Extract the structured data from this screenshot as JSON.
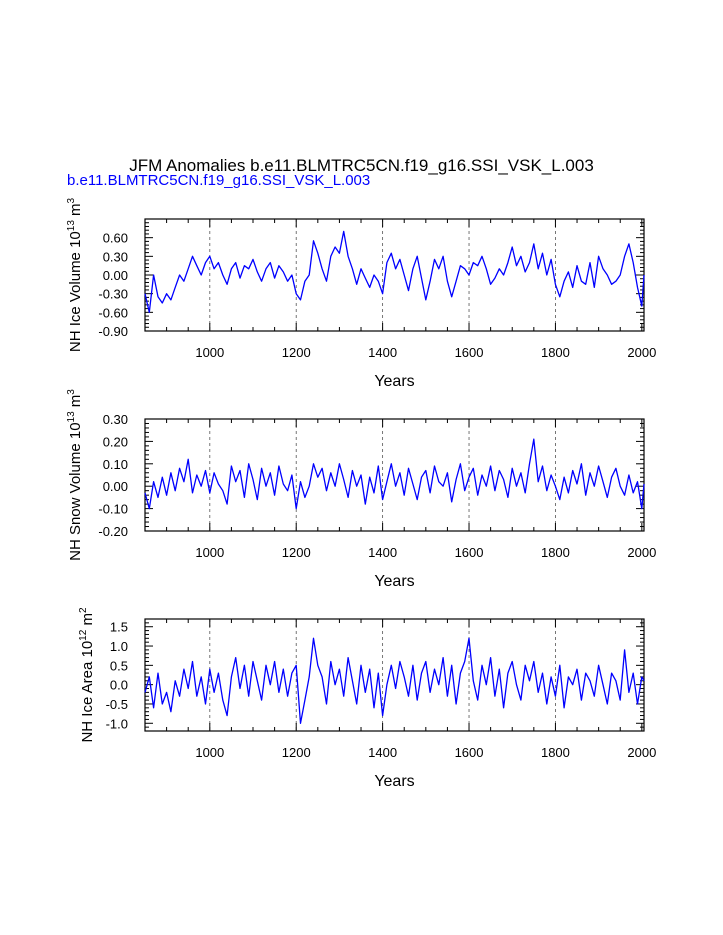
{
  "figure": {
    "title": "JFM Anomalies b.e11.BLMTRC5CN.f19_g16.SSI_VSK_L.003",
    "subtitle": "b.e11.BLMTRC5CN.f19_g16.SSI_VSK_L.003",
    "subtitle_color": "#0000ff",
    "line_color": "#0000ff"
  },
  "chart_data": [
    {
      "type": "line",
      "ylabel": "NH Ice Volume 10^13 m^3",
      "ylabel_parts": {
        "base": "NH Ice Volume 10",
        "exp1": "13",
        "mid": " m",
        "exp2": "3"
      },
      "xlabel": "Years",
      "xlim": [
        850,
        2005
      ],
      "ylim": [
        -0.9,
        0.9
      ],
      "xticks": [
        1000,
        1200,
        1400,
        1600,
        1800,
        2000
      ],
      "yticks": [
        -0.9,
        -0.6,
        -0.3,
        0.0,
        0.3,
        0.6
      ],
      "ytick_labels": [
        "-0.90",
        "-0.60",
        "-0.30",
        "0.00",
        "0.30",
        "0.60"
      ],
      "gridlines_x": [
        1000,
        1200,
        1400,
        1600,
        1800
      ],
      "series": [
        {
          "x": [
            850,
            860,
            870,
            880,
            890,
            900,
            910,
            920,
            930,
            940,
            950,
            960,
            970,
            980,
            990,
            1000,
            1010,
            1020,
            1030,
            1040,
            1050,
            1060,
            1070,
            1080,
            1090,
            1100,
            1110,
            1120,
            1130,
            1140,
            1150,
            1160,
            1170,
            1180,
            1190,
            1200,
            1210,
            1220,
            1230,
            1240,
            1250,
            1260,
            1270,
            1280,
            1290,
            1300,
            1310,
            1320,
            1330,
            1340,
            1350,
            1360,
            1370,
            1380,
            1390,
            1400,
            1410,
            1420,
            1430,
            1440,
            1450,
            1460,
            1470,
            1480,
            1490,
            1500,
            1510,
            1520,
            1530,
            1540,
            1550,
            1560,
            1570,
            1580,
            1590,
            1600,
            1610,
            1620,
            1630,
            1640,
            1650,
            1660,
            1670,
            1680,
            1690,
            1700,
            1710,
            1720,
            1730,
            1740,
            1750,
            1760,
            1770,
            1780,
            1790,
            1800,
            1810,
            1820,
            1830,
            1840,
            1850,
            1860,
            1870,
            1880,
            1890,
            1900,
            1910,
            1920,
            1930,
            1940,
            1950,
            1960,
            1970,
            1980,
            1990,
            2000,
            2005
          ],
          "values": [
            -0.3,
            -0.6,
            0.0,
            -0.35,
            -0.45,
            -0.3,
            -0.4,
            -0.2,
            0.0,
            -0.1,
            0.1,
            0.3,
            0.15,
            0.0,
            0.2,
            0.3,
            0.1,
            0.2,
            0.0,
            -0.15,
            0.1,
            0.2,
            -0.05,
            0.15,
            0.1,
            0.25,
            0.05,
            -0.1,
            0.1,
            0.2,
            -0.05,
            0.15,
            0.05,
            -0.1,
            0.0,
            -0.3,
            -0.4,
            -0.1,
            0.0,
            0.55,
            0.35,
            0.1,
            -0.1,
            0.3,
            0.45,
            0.35,
            0.7,
            0.3,
            0.1,
            -0.15,
            0.1,
            -0.05,
            -0.2,
            0.0,
            -0.1,
            -0.3,
            0.2,
            0.35,
            0.1,
            0.25,
            0.0,
            -0.25,
            0.1,
            0.3,
            -0.05,
            -0.4,
            -0.1,
            0.25,
            0.1,
            0.3,
            -0.1,
            -0.35,
            -0.1,
            0.15,
            0.1,
            0.0,
            0.2,
            0.15,
            0.3,
            0.1,
            -0.15,
            -0.05,
            0.1,
            0.0,
            0.2,
            0.45,
            0.15,
            0.3,
            0.05,
            0.2,
            0.5,
            0.1,
            0.35,
            0.0,
            0.25,
            -0.15,
            -0.35,
            -0.1,
            0.05,
            -0.2,
            0.15,
            -0.1,
            -0.15,
            0.2,
            -0.2,
            0.3,
            0.1,
            0.0,
            -0.15,
            -0.1,
            0.0,
            0.3,
            0.5,
            0.2,
            -0.2,
            -0.5,
            0.0
          ]
        }
      ]
    },
    {
      "type": "line",
      "ylabel": "NH Snow Volume 10^13 m^3",
      "ylabel_parts": {
        "base": "NH Snow Volume 10",
        "exp1": "13",
        "mid": " m",
        "exp2": "3"
      },
      "xlabel": "Years",
      "xlim": [
        850,
        2005
      ],
      "ylim": [
        -0.2,
        0.3
      ],
      "xticks": [
        1000,
        1200,
        1400,
        1600,
        1800,
        2000
      ],
      "yticks": [
        -0.2,
        -0.1,
        0.0,
        0.1,
        0.2,
        0.3
      ],
      "ytick_labels": [
        "-0.20",
        "-0.10",
        "0.00",
        "0.10",
        "0.20",
        "0.30"
      ],
      "gridlines_x": [
        1000,
        1200,
        1400,
        1600,
        1800
      ],
      "series": [
        {
          "x": [
            850,
            860,
            870,
            880,
            890,
            900,
            910,
            920,
            930,
            940,
            950,
            960,
            970,
            980,
            990,
            1000,
            1010,
            1020,
            1030,
            1040,
            1050,
            1060,
            1070,
            1080,
            1090,
            1100,
            1110,
            1120,
            1130,
            1140,
            1150,
            1160,
            1170,
            1180,
            1190,
            1200,
            1210,
            1220,
            1230,
            1240,
            1250,
            1260,
            1270,
            1280,
            1290,
            1300,
            1310,
            1320,
            1330,
            1340,
            1350,
            1360,
            1370,
            1380,
            1390,
            1400,
            1410,
            1420,
            1430,
            1440,
            1450,
            1460,
            1470,
            1480,
            1490,
            1500,
            1510,
            1520,
            1530,
            1540,
            1550,
            1560,
            1570,
            1580,
            1590,
            1600,
            1610,
            1620,
            1630,
            1640,
            1650,
            1660,
            1670,
            1680,
            1690,
            1700,
            1710,
            1720,
            1730,
            1740,
            1750,
            1760,
            1770,
            1780,
            1790,
            1800,
            1810,
            1820,
            1830,
            1840,
            1850,
            1860,
            1870,
            1880,
            1890,
            1900,
            1910,
            1920,
            1930,
            1940,
            1950,
            1960,
            1970,
            1980,
            1990,
            2000,
            2005
          ],
          "values": [
            -0.03,
            -0.1,
            0.02,
            -0.05,
            0.04,
            -0.04,
            0.06,
            -0.02,
            0.08,
            0.02,
            0.12,
            -0.03,
            0.05,
            0.0,
            0.07,
            -0.03,
            0.06,
            0.01,
            -0.02,
            -0.08,
            0.09,
            0.02,
            0.07,
            -0.05,
            0.1,
            0.03,
            -0.06,
            0.08,
            0.0,
            0.06,
            -0.04,
            0.09,
            0.01,
            -0.02,
            0.05,
            -0.1,
            0.02,
            -0.05,
            0.0,
            0.1,
            0.04,
            0.08,
            -0.02,
            0.06,
            0.0,
            0.1,
            0.03,
            -0.05,
            0.07,
            0.0,
            0.05,
            -0.08,
            0.04,
            -0.03,
            0.09,
            -0.06,
            0.02,
            0.1,
            0.0,
            0.06,
            -0.04,
            0.08,
            0.01,
            -0.06,
            0.04,
            0.07,
            -0.03,
            0.09,
            0.02,
            0.0,
            0.06,
            -0.07,
            0.03,
            0.1,
            -0.02,
            0.04,
            0.08,
            -0.04,
            0.05,
            0.0,
            0.09,
            -0.02,
            0.07,
            0.03,
            -0.05,
            0.08,
            0.0,
            0.06,
            -0.03,
            0.1,
            0.21,
            0.02,
            0.09,
            -0.02,
            0.05,
            0.0,
            -0.06,
            0.04,
            -0.03,
            0.07,
            0.01,
            0.1,
            -0.04,
            0.06,
            0.0,
            0.09,
            0.02,
            -0.05,
            0.04,
            0.08,
            0.0,
            -0.04,
            0.05,
            -0.03,
            0.02,
            -0.1,
            0.01
          ]
        }
      ]
    },
    {
      "type": "line",
      "ylabel": "NH Ice Area 10^12 m^2",
      "ylabel_parts": {
        "base": "NH Ice Area 10",
        "exp1": "12",
        "mid": " m",
        "exp2": "2"
      },
      "xlabel": "Years",
      "xlim": [
        850,
        2005
      ],
      "ylim": [
        -1.2,
        1.7
      ],
      "xticks": [
        1000,
        1200,
        1400,
        1600,
        1800,
        2000
      ],
      "yticks": [
        -1.0,
        -0.5,
        0.0,
        0.5,
        1.0,
        1.5
      ],
      "ytick_labels": [
        "-1.0",
        "-0.5",
        "0.0",
        "0.5",
        "1.0",
        "1.5"
      ],
      "gridlines_x": [
        1000,
        1200,
        1400,
        1600,
        1800
      ],
      "series": [
        {
          "x": [
            850,
            860,
            870,
            880,
            890,
            900,
            910,
            920,
            930,
            940,
            950,
            960,
            970,
            980,
            990,
            1000,
            1010,
            1020,
            1030,
            1040,
            1050,
            1060,
            1070,
            1080,
            1090,
            1100,
            1110,
            1120,
            1130,
            1140,
            1150,
            1160,
            1170,
            1180,
            1190,
            1200,
            1210,
            1220,
            1230,
            1240,
            1250,
            1260,
            1270,
            1280,
            1290,
            1300,
            1310,
            1320,
            1330,
            1340,
            1350,
            1360,
            1370,
            1380,
            1390,
            1400,
            1410,
            1420,
            1430,
            1440,
            1450,
            1460,
            1470,
            1480,
            1490,
            1500,
            1510,
            1520,
            1530,
            1540,
            1550,
            1560,
            1570,
            1580,
            1590,
            1600,
            1610,
            1620,
            1630,
            1640,
            1650,
            1660,
            1670,
            1680,
            1690,
            1700,
            1710,
            1720,
            1730,
            1740,
            1750,
            1760,
            1770,
            1780,
            1790,
            1800,
            1810,
            1820,
            1830,
            1840,
            1850,
            1860,
            1870,
            1880,
            1890,
            1900,
            1910,
            1920,
            1930,
            1940,
            1950,
            1960,
            1970,
            1980,
            1990,
            2000,
            2005
          ],
          "values": [
            -0.2,
            0.2,
            -0.6,
            0.3,
            -0.5,
            -0.2,
            -0.7,
            0.1,
            -0.3,
            0.4,
            -0.1,
            0.6,
            -0.3,
            0.2,
            -0.5,
            0.4,
            -0.2,
            0.3,
            -0.4,
            -0.8,
            0.2,
            0.7,
            -0.1,
            0.5,
            -0.3,
            0.6,
            0.1,
            -0.4,
            0.5,
            0.0,
            0.6,
            -0.2,
            0.4,
            -0.3,
            0.3,
            0.5,
            -1.0,
            -0.4,
            0.2,
            1.2,
            0.5,
            0.2,
            -0.5,
            0.6,
            0.0,
            0.4,
            -0.3,
            0.7,
            0.1,
            -0.5,
            0.5,
            -0.2,
            0.4,
            -0.6,
            0.3,
            -0.8,
            0.0,
            0.5,
            -0.1,
            0.6,
            0.2,
            -0.3,
            0.5,
            -0.4,
            0.3,
            0.6,
            -0.2,
            0.4,
            0.0,
            0.7,
            -0.3,
            0.5,
            -0.5,
            0.3,
            0.6,
            1.2,
            0.1,
            -0.4,
            0.5,
            0.0,
            0.7,
            -0.3,
            0.4,
            -0.6,
            0.3,
            0.6,
            0.0,
            -0.4,
            0.5,
            0.1,
            0.6,
            -0.2,
            0.3,
            -0.5,
            0.2,
            -0.3,
            0.5,
            -0.6,
            0.2,
            0.0,
            0.4,
            -0.4,
            0.3,
            0.1,
            -0.3,
            0.5,
            0.0,
            -0.5,
            0.3,
            0.1,
            -0.4,
            0.9,
            -0.2,
            0.3,
            -0.5,
            0.2,
            0.1
          ]
        }
      ]
    }
  ]
}
